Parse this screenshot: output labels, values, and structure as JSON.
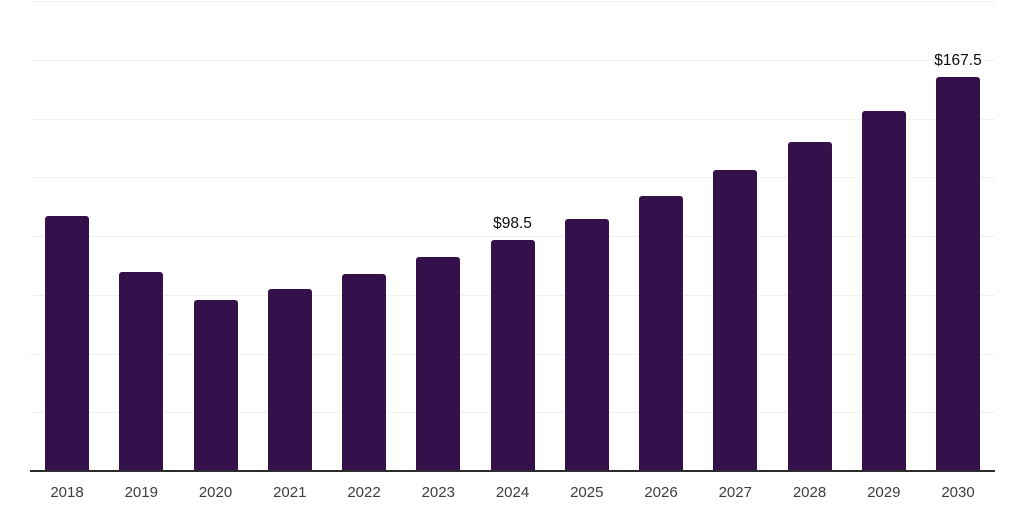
{
  "chart_data": {
    "type": "bar",
    "title": "",
    "xlabel": "",
    "ylabel": "",
    "categories": [
      "2018",
      "2019",
      "2020",
      "2021",
      "2022",
      "2023",
      "2024",
      "2025",
      "2026",
      "2027",
      "2028",
      "2029",
      "2030"
    ],
    "values": [
      108.6,
      84.8,
      72.6,
      77.5,
      83.7,
      91.2,
      98.5,
      107.4,
      117.2,
      127.9,
      139.9,
      153.1,
      167.5
    ],
    "value_labels": {
      "2024": "$98.5",
      "2030": "$167.5"
    },
    "unit_prefix": "$",
    "ylim": [
      0,
      200
    ],
    "gridline_step": 25,
    "grid": "horizontal-only",
    "legend": "none",
    "y_axis_labels_visible": false,
    "colors": {
      "bar": "#35114c",
      "axis_line": "#2d2d2d",
      "gridline": "#f1f1f1",
      "tick_label": "#3d3d3d",
      "value_label": "#0d0d0d",
      "background": "#ffffff"
    }
  }
}
